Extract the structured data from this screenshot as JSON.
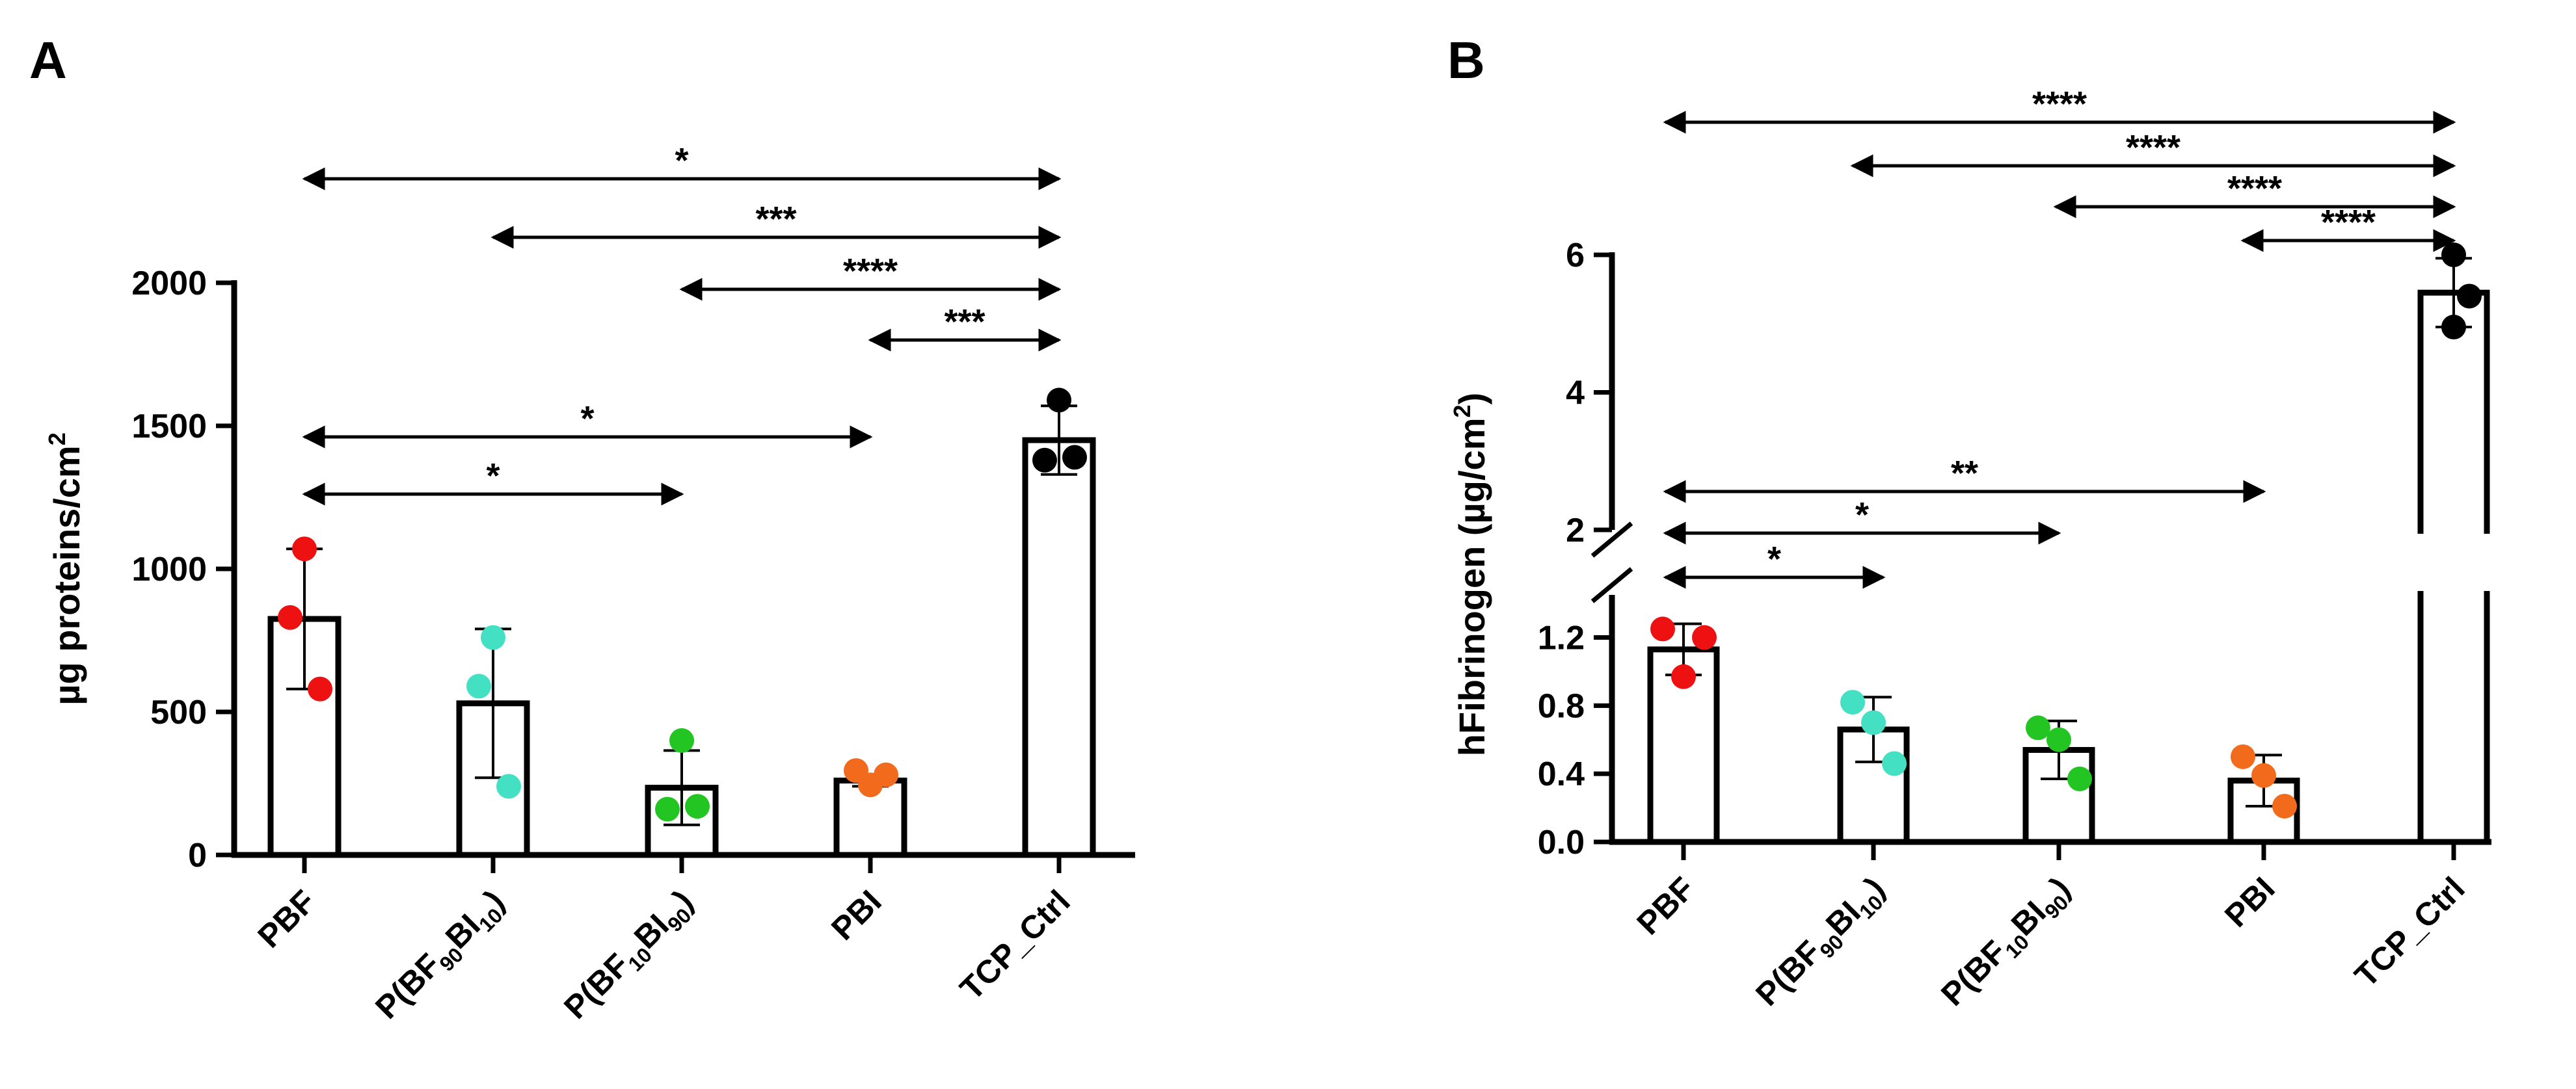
{
  "chart_data": [
    {
      "panel_label": "A",
      "type": "bar",
      "categories": [
        {
          "main": "PBF"
        },
        {
          "main": "P(BF",
          "s1": "90",
          "mid": "BI",
          "s2": "10",
          "end": ")"
        },
        {
          "main": "P(BF",
          "s1": "10",
          "mid": "BI",
          "s2": "90",
          "end": ")"
        },
        {
          "main": "PBI"
        },
        {
          "main": "TCP_Ctrl"
        }
      ],
      "values": [
        825,
        530,
        235,
        260,
        1450
      ],
      "errors": [
        245,
        260,
        130,
        20,
        120
      ],
      "points": [
        [
          1070,
          830,
          580
        ],
        [
          760,
          590,
          240
        ],
        [
          400,
          160,
          170
        ],
        [
          245,
          295,
          280
        ],
        [
          1590,
          1380,
          1390
        ]
      ],
      "point_colors": [
        "#ee1111",
        "#44e0c4",
        "#22c522",
        "#f26b1d",
        "#000000"
      ],
      "ylabel": "µg proteins/cm",
      "ylabel_sup": "2",
      "ylim": [
        0,
        2000
      ],
      "yticks": [
        0,
        500,
        1000,
        1500,
        2000
      ],
      "significance": [
        {
          "from": 0,
          "to": 4,
          "label": "*"
        },
        {
          "from": 1,
          "to": 4,
          "label": "***"
        },
        {
          "from": 2,
          "to": 4,
          "label": "****"
        },
        {
          "from": 3,
          "to": 4,
          "label": "***"
        },
        {
          "from": 0,
          "to": 3,
          "label": "*"
        },
        {
          "from": 0,
          "to": 2,
          "label": "*"
        }
      ]
    },
    {
      "panel_label": "B",
      "type": "bar",
      "categories": [
        {
          "main": "PBF"
        },
        {
          "main": "P(BF",
          "s1": "90",
          "mid": "BI",
          "s2": "10",
          "end": ")"
        },
        {
          "main": "P(BF",
          "s1": "10",
          "mid": "BI",
          "s2": "90",
          "end": ")"
        },
        {
          "main": "PBI"
        },
        {
          "main": "TCP_Ctrl"
        }
      ],
      "values": [
        1.13,
        0.66,
        0.54,
        0.36,
        5.45
      ],
      "errors": [
        0.15,
        0.19,
        0.17,
        0.15,
        0.5
      ],
      "points": [
        [
          1.25,
          1.2,
          0.97
        ],
        [
          0.82,
          0.46,
          0.7
        ],
        [
          0.67,
          0.37,
          0.6
        ],
        [
          0.5,
          0.21,
          0.39
        ],
        [
          6.0,
          5.4,
          4.95
        ]
      ],
      "point_colors": [
        "#ee1111",
        "#44e0c4",
        "#22c522",
        "#f26b1d",
        "#000000"
      ],
      "ylabel": "hFibrinogen (µg/cm",
      "ylabel_sup": "2",
      "ylabel_end": ")",
      "axis_break": true,
      "lower_ylim": [
        0,
        1.45
      ],
      "upper_ylim": [
        2,
        6
      ],
      "lower_yticks": [
        "0.0",
        "0.4",
        "0.8",
        "1.2"
      ],
      "upper_yticks": [
        "2",
        "4",
        "6"
      ],
      "significance": [
        {
          "from": 0,
          "to": 4,
          "label": "****"
        },
        {
          "from": 1,
          "to": 4,
          "label": "****"
        },
        {
          "from": 2,
          "to": 4,
          "label": "****"
        },
        {
          "from": 3,
          "to": 4,
          "label": "****"
        },
        {
          "from": 0,
          "to": 3,
          "label": "**"
        },
        {
          "from": 0,
          "to": 2,
          "label": "*"
        },
        {
          "from": 0,
          "to": 1,
          "label": "*"
        }
      ]
    }
  ]
}
